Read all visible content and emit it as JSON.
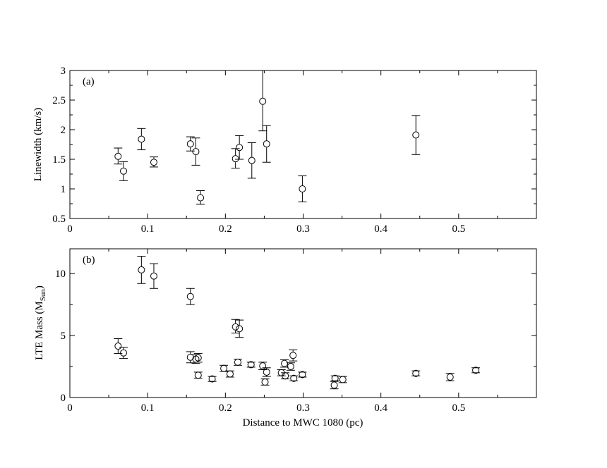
{
  "chart_data": [
    {
      "type": "scatter",
      "panel_label": "(a)",
      "xlabel": "",
      "ylabel": "Linewidth (km/s)",
      "xlim": [
        0,
        0.6
      ],
      "ylim": [
        0.5,
        3
      ],
      "xticks": [
        "0",
        "0.1",
        "0.2",
        "0.3",
        "0.4",
        "0.5"
      ],
      "yticks": [
        "0.5",
        "1",
        "1.5",
        "2",
        "2.5",
        "3"
      ],
      "grid": false,
      "points": [
        {
          "x": 0.062,
          "y": 1.55,
          "lo": 1.42,
          "hi": 1.69
        },
        {
          "x": 0.069,
          "y": 1.3,
          "lo": 1.14,
          "hi": 1.46
        },
        {
          "x": 0.092,
          "y": 1.84,
          "lo": 1.66,
          "hi": 2.02
        },
        {
          "x": 0.108,
          "y": 1.45,
          "lo": 1.37,
          "hi": 1.54
        },
        {
          "x": 0.155,
          "y": 1.76,
          "lo": 1.64,
          "hi": 1.88
        },
        {
          "x": 0.162,
          "y": 1.63,
          "lo": 1.4,
          "hi": 1.86
        },
        {
          "x": 0.168,
          "y": 0.85,
          "lo": 0.74,
          "hi": 0.97
        },
        {
          "x": 0.213,
          "y": 1.51,
          "lo": 1.35,
          "hi": 1.68
        },
        {
          "x": 0.218,
          "y": 1.7,
          "lo": 1.5,
          "hi": 1.9
        },
        {
          "x": 0.234,
          "y": 1.48,
          "lo": 1.18,
          "hi": 1.78
        },
        {
          "x": 0.248,
          "y": 2.48,
          "lo": 1.98,
          "hi": 3.0
        },
        {
          "x": 0.253,
          "y": 1.76,
          "lo": 1.45,
          "hi": 2.07
        },
        {
          "x": 0.299,
          "y": 1.0,
          "lo": 0.78,
          "hi": 1.22
        },
        {
          "x": 0.445,
          "y": 1.91,
          "lo": 1.58,
          "hi": 2.24
        }
      ]
    },
    {
      "type": "scatter",
      "panel_label": "(b)",
      "xlabel": "Distance to MWC 1080 (pc)",
      "ylabel": "LTE Mass (M",
      "ylabel_sub": "Sun",
      "ylabel_close": ")",
      "xlim": [
        0,
        0.6
      ],
      "ylim": [
        0,
        12
      ],
      "xticks": [
        "0",
        "0.1",
        "0.2",
        "0.3",
        "0.4",
        "0.5"
      ],
      "yticks": [
        "0",
        "5",
        "10"
      ],
      "grid": false,
      "points": [
        {
          "x": 0.062,
          "y": 4.15,
          "lo": 3.55,
          "hi": 4.75
        },
        {
          "x": 0.069,
          "y": 3.6,
          "lo": 3.15,
          "hi": 4.05
        },
        {
          "x": 0.092,
          "y": 10.3,
          "lo": 9.2,
          "hi": 11.4
        },
        {
          "x": 0.108,
          "y": 9.8,
          "lo": 8.8,
          "hi": 10.8
        },
        {
          "x": 0.155,
          "y": 8.15,
          "lo": 7.5,
          "hi": 8.8
        },
        {
          "x": 0.155,
          "y": 3.25,
          "lo": 2.8,
          "hi": 3.7
        },
        {
          "x": 0.162,
          "y": 3.1,
          "lo": 2.75,
          "hi": 3.45
        },
        {
          "x": 0.165,
          "y": 3.2,
          "lo": 2.85,
          "hi": 3.55
        },
        {
          "x": 0.165,
          "y": 1.8,
          "lo": 1.55,
          "hi": 2.05
        },
        {
          "x": 0.183,
          "y": 1.5,
          "lo": 1.3,
          "hi": 1.7
        },
        {
          "x": 0.198,
          "y": 2.35,
          "lo": 2.1,
          "hi": 2.6
        },
        {
          "x": 0.206,
          "y": 1.9,
          "lo": 1.65,
          "hi": 2.15
        },
        {
          "x": 0.213,
          "y": 5.7,
          "lo": 5.2,
          "hi": 6.3
        },
        {
          "x": 0.218,
          "y": 5.55,
          "lo": 4.85,
          "hi": 6.25
        },
        {
          "x": 0.216,
          "y": 2.85,
          "lo": 2.6,
          "hi": 3.1
        },
        {
          "x": 0.233,
          "y": 2.65,
          "lo": 2.45,
          "hi": 2.85
        },
        {
          "x": 0.248,
          "y": 2.55,
          "lo": 2.25,
          "hi": 2.85
        },
        {
          "x": 0.251,
          "y": 1.25,
          "lo": 1.0,
          "hi": 1.5
        },
        {
          "x": 0.253,
          "y": 2.05,
          "lo": 1.7,
          "hi": 2.4
        },
        {
          "x": 0.272,
          "y": 2.0,
          "lo": 1.75,
          "hi": 2.25
        },
        {
          "x": 0.276,
          "y": 2.75,
          "lo": 2.45,
          "hi": 3.05
        },
        {
          "x": 0.277,
          "y": 1.75,
          "lo": 1.5,
          "hi": 2.0
        },
        {
          "x": 0.284,
          "y": 2.5,
          "lo": 2.2,
          "hi": 2.8
        },
        {
          "x": 0.287,
          "y": 3.4,
          "lo": 2.95,
          "hi": 3.85
        },
        {
          "x": 0.288,
          "y": 1.55,
          "lo": 1.35,
          "hi": 1.75
        },
        {
          "x": 0.299,
          "y": 1.85,
          "lo": 1.65,
          "hi": 2.05
        },
        {
          "x": 0.34,
          "y": 1.0,
          "lo": 0.7,
          "hi": 1.3
        },
        {
          "x": 0.341,
          "y": 1.55,
          "lo": 1.35,
          "hi": 1.75
        },
        {
          "x": 0.351,
          "y": 1.45,
          "lo": 1.2,
          "hi": 1.7
        },
        {
          "x": 0.445,
          "y": 1.95,
          "lo": 1.75,
          "hi": 2.15
        },
        {
          "x": 0.489,
          "y": 1.65,
          "lo": 1.35,
          "hi": 1.95
        },
        {
          "x": 0.522,
          "y": 2.2,
          "lo": 2.0,
          "hi": 2.4
        }
      ]
    }
  ]
}
